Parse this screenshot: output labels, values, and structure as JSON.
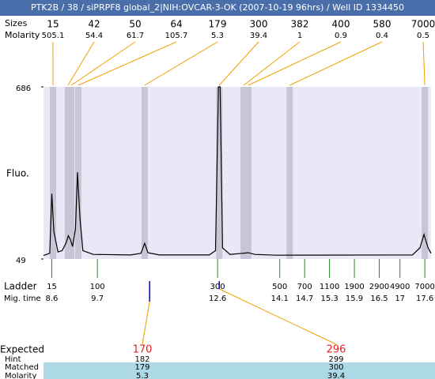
{
  "header": {
    "title": "PTK2B / 38 / siPRPF8 global_2|NIH:OVCAR-3-OK (2007-10-19 96hrs) / Well ID 1334450"
  },
  "chart_data": {
    "type": "electropherogram",
    "y_label": "Fluo.",
    "ylim": [
      49,
      686
    ],
    "yticks": [
      49,
      686
    ],
    "xlim": [
      8.4,
      17.75
    ],
    "peaks": {
      "size_label": "Sizes",
      "molarity_label": "Molarity",
      "sizes": [
        15,
        42,
        50,
        64,
        179,
        300,
        382,
        400,
        580,
        7000
      ],
      "molarity": [
        505.1,
        54.4,
        61.7,
        105.7,
        5.3,
        39.4,
        1,
        0.9,
        0.4,
        0.5
      ],
      "times": [
        8.63,
        8.99,
        9.07,
        9.24,
        10.84,
        12.64,
        13.23,
        13.34,
        14.34,
        17.6
      ]
    },
    "ladder": {
      "label": "Ladder",
      "time_label": "Mig. time",
      "sizes": [
        15,
        100,
        300,
        500,
        700,
        1100,
        1900,
        2900,
        4900,
        7000
      ],
      "times": [
        8.6,
        9.7,
        12.6,
        14.1,
        14.7,
        15.3,
        15.9,
        16.5,
        17,
        17.6
      ]
    },
    "trace": {
      "x": [
        8.4,
        8.55,
        8.6,
        8.65,
        8.75,
        8.85,
        8.95,
        9.0,
        9.05,
        9.1,
        9.17,
        9.22,
        9.28,
        9.35,
        9.6,
        10.5,
        10.75,
        10.84,
        10.92,
        11.2,
        12.4,
        12.55,
        12.62,
        12.66,
        12.72,
        12.9,
        13.2,
        13.34,
        13.5,
        14.0,
        17.3,
        17.48,
        17.58,
        17.68,
        17.75
      ],
      "y": [
        62,
        70,
        291,
        150,
        75,
        80,
        110,
        135,
        120,
        95,
        160,
        370,
        200,
        80,
        66,
        64,
        70,
        107,
        72,
        64,
        64,
        80,
        686,
        686,
        90,
        66,
        70,
        72,
        66,
        63,
        64,
        90,
        140,
        90,
        70
      ]
    }
  },
  "expected": {
    "labels": [
      "Expected",
      "Hint",
      "Matched",
      "Molarity"
    ],
    "columns": [
      {
        "expected": 170,
        "hint": 182,
        "matched": 179,
        "molarity": 5.3,
        "marker_time": 10.96
      },
      {
        "expected": 296,
        "hint": 299,
        "matched": 300,
        "molarity": 39.4,
        "marker_time": 12.64
      }
    ]
  }
}
